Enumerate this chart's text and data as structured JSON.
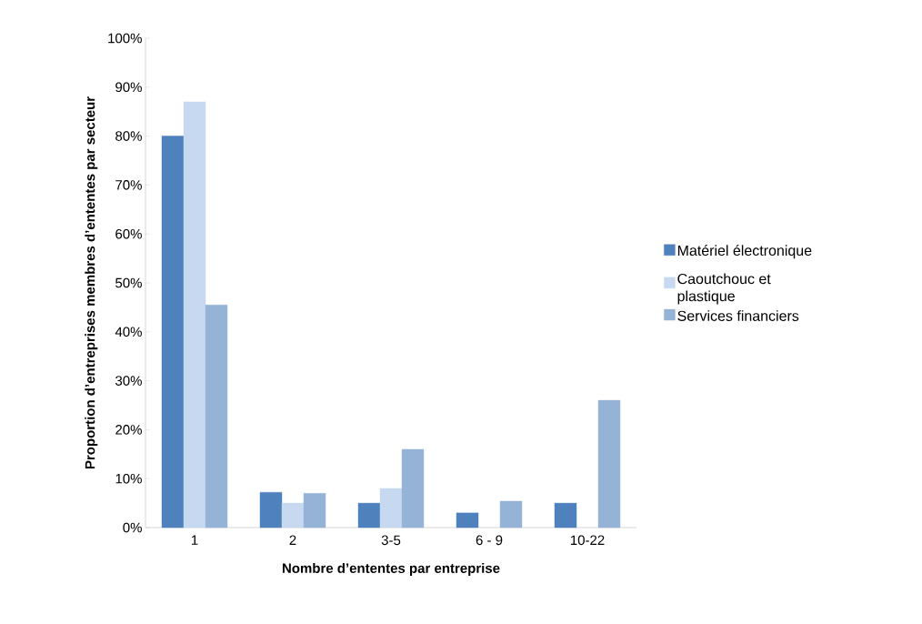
{
  "chart_data": {
    "type": "bar",
    "xlabel": "Nombre d’ententes par entreprise",
    "ylabel": "Proportion d’entreprises membres d’ententes par secteur",
    "categories": [
      "1",
      "2",
      "3-5",
      "6 - 9",
      "10-22"
    ],
    "series": [
      {
        "name": "Matériel électronique",
        "color": "#4f81bd",
        "values": [
          80,
          7.2,
          5,
          3,
          5
        ]
      },
      {
        "name": "Caoutchouc et plastique",
        "color": "#c6d9f1",
        "values": [
          87,
          5,
          8,
          null,
          null
        ]
      },
      {
        "name": "Services financiers",
        "color": "#95b3d7",
        "values": [
          45.5,
          7,
          16,
          5.4,
          26
        ]
      }
    ],
    "ylim": [
      0,
      100
    ],
    "yticks": [
      {
        "value": 0,
        "label": "0%"
      },
      {
        "value": 10,
        "label": "10%"
      },
      {
        "value": 20,
        "label": "20%"
      },
      {
        "value": 30,
        "label": "30%"
      },
      {
        "value": 40,
        "label": "40%"
      },
      {
        "value": 50,
        "label": "50%"
      },
      {
        "value": 60,
        "label": "60%"
      },
      {
        "value": 70,
        "label": "70%"
      },
      {
        "value": 80,
        "label": "80%"
      },
      {
        "value": 90,
        "label": "90%"
      },
      {
        "value": 100,
        "label": "100%"
      }
    ],
    "grid": false,
    "legend": "right"
  }
}
